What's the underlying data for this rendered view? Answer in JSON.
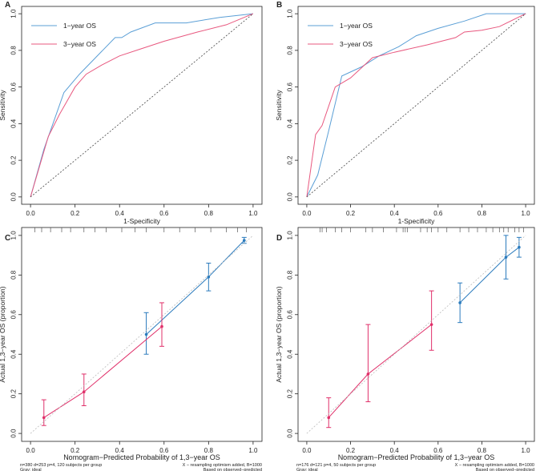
{
  "chart_data": [
    {
      "panel": "A",
      "type": "line",
      "title": "",
      "xlabel": "1-Specificity",
      "ylabel": "Sensitivity",
      "xlim": [
        0,
        1
      ],
      "ylim": [
        0,
        1
      ],
      "xticks": [
        "0.0",
        "0.2",
        "0.4",
        "0.6",
        "0.8",
        "1.0"
      ],
      "yticks": [
        "0.0",
        "0.2",
        "0.4",
        "0.6",
        "0.8",
        "1.0"
      ],
      "legend": "top-left",
      "grid": false,
      "series": [
        {
          "name": "1−year OS",
          "color": "#5b9fd6",
          "x": [
            0,
            0.06,
            0.15,
            0.22,
            0.38,
            0.41,
            0.45,
            0.56,
            0.7,
            0.85,
            1.0
          ],
          "y": [
            0,
            0.26,
            0.57,
            0.67,
            0.87,
            0.87,
            0.9,
            0.95,
            0.95,
            0.98,
            1.0
          ]
        },
        {
          "name": "3−year OS",
          "color": "#e8587f",
          "x": [
            0,
            0.08,
            0.13,
            0.2,
            0.25,
            0.32,
            0.4,
            0.5,
            0.6,
            0.75,
            0.88,
            1.0
          ],
          "y": [
            0,
            0.33,
            0.45,
            0.6,
            0.67,
            0.72,
            0.77,
            0.81,
            0.85,
            0.9,
            0.94,
            1.0
          ]
        },
        {
          "name": "reference",
          "color": "#444444",
          "dashed": true,
          "x": [
            0,
            1
          ],
          "y": [
            0,
            1
          ]
        }
      ]
    },
    {
      "panel": "B",
      "type": "line",
      "title": "",
      "xlabel": "1-Specificity",
      "ylabel": "Sensitivity",
      "xlim": [
        0,
        1
      ],
      "ylim": [
        0,
        1
      ],
      "xticks": [
        "0.0",
        "0.2",
        "0.4",
        "0.6",
        "0.8",
        "1.0"
      ],
      "yticks": [
        "0.0",
        "0.2",
        "0.4",
        "0.6",
        "0.8",
        "1.0"
      ],
      "legend": "top-left",
      "grid": false,
      "series": [
        {
          "name": "1−year OS",
          "color": "#5b9fd6",
          "x": [
            0,
            0.05,
            0.1,
            0.16,
            0.25,
            0.33,
            0.42,
            0.5,
            0.6,
            0.72,
            0.82,
            1.0
          ],
          "y": [
            0,
            0.12,
            0.36,
            0.66,
            0.71,
            0.77,
            0.82,
            0.88,
            0.92,
            0.96,
            1.0,
            1.0
          ]
        },
        {
          "name": "3−year OS",
          "color": "#e8587f",
          "x": [
            0,
            0.04,
            0.07,
            0.13,
            0.2,
            0.3,
            0.4,
            0.55,
            0.68,
            0.72,
            0.8,
            0.88,
            1.0
          ],
          "y": [
            0,
            0.34,
            0.39,
            0.6,
            0.65,
            0.76,
            0.79,
            0.83,
            0.87,
            0.9,
            0.91,
            0.93,
            1.0
          ]
        },
        {
          "name": "reference",
          "color": "#444444",
          "dashed": true,
          "x": [
            0,
            1
          ],
          "y": [
            0,
            1
          ]
        }
      ]
    },
    {
      "panel": "C",
      "type": "line",
      "title": "",
      "xlabel": "Nomogram−Predicted Probability of 1,3−year OS",
      "ylabel": "Actual 1,3−year OS (proportion)",
      "xlim": [
        0,
        1
      ],
      "ylim": [
        0,
        1
      ],
      "xticks": [
        "0.0",
        "0.2",
        "0.4",
        "0.6",
        "0.8",
        "1.0"
      ],
      "yticks": [
        "0.0",
        "0.2",
        "0.4",
        "0.6",
        "0.8",
        "1.0"
      ],
      "footnote_left": "n=380 d=253 p=4, 120 subjects per group",
      "footnote_left2": "Gray: ideal",
      "footnote_right": "X − resampling optimism added, B=1000",
      "footnote_right2": "Based on observed−predicted",
      "rug_x": [
        0.02,
        0.05,
        0.09,
        0.14,
        0.18,
        0.24,
        0.29,
        0.34,
        0.41,
        0.47,
        0.52,
        0.6,
        0.67,
        0.74,
        0.81,
        0.88,
        0.93,
        0.97
      ],
      "series": [
        {
          "name": "1−year OS",
          "color": "#2b7bbd",
          "x": [
            0.52,
            0.8,
            0.96
          ],
          "y": [
            0.5,
            0.79,
            0.975
          ],
          "lower": [
            0.4,
            0.72,
            0.96
          ],
          "upper": [
            0.61,
            0.86,
            0.99
          ]
        },
        {
          "name": "3−year OS",
          "color": "#e0306a",
          "x": [
            0.06,
            0.24,
            0.59
          ],
          "y": [
            0.08,
            0.21,
            0.54
          ],
          "lower": [
            0.04,
            0.14,
            0.44
          ],
          "upper": [
            0.17,
            0.3,
            0.66
          ]
        },
        {
          "name": "ideal",
          "color": "#bbbbbb",
          "dashed": true,
          "x": [
            0,
            1
          ],
          "y": [
            0,
            1
          ]
        }
      ]
    },
    {
      "panel": "D",
      "type": "line",
      "title": "",
      "xlabel": "Nomogram−Predicted Probability of 1,3−year OS",
      "ylabel": "Actual 1,3−year OS (proportion)",
      "xlim": [
        0,
        1
      ],
      "ylim": [
        0,
        1
      ],
      "xticks": [
        "0.0",
        "0.2",
        "0.4",
        "0.6",
        "0.8",
        "1.0"
      ],
      "yticks": [
        "0.0",
        "0.2",
        "0.4",
        "0.6",
        "0.8",
        "1.0"
      ],
      "footnote_left": "n=176 d=121 p=4, 50 subjects per group",
      "footnote_left2": "Gray: ideal",
      "footnote_right": "X − resampling optimism added, B=1000",
      "footnote_right2": "Based on observed−predicted",
      "rug_x": [
        0.06,
        0.07,
        0.09,
        0.13,
        0.16,
        0.2,
        0.27,
        0.3,
        0.35,
        0.41,
        0.44,
        0.45,
        0.46,
        0.52,
        0.55,
        0.57,
        0.6,
        0.64,
        0.7,
        0.74,
        0.78,
        0.82,
        0.85,
        0.88,
        0.9,
        0.92,
        0.95,
        0.97,
        0.99
      ],
      "series": [
        {
          "name": "1−year OS",
          "color": "#2b7bbd",
          "x": [
            0.7,
            0.91,
            0.97
          ],
          "y": [
            0.66,
            0.89,
            0.94
          ],
          "lower": [
            0.56,
            0.78,
            0.89
          ],
          "upper": [
            0.76,
            1.0,
            0.99
          ]
        },
        {
          "name": "3−year OS",
          "color": "#e0306a",
          "x": [
            0.1,
            0.28,
            0.57
          ],
          "y": [
            0.08,
            0.3,
            0.55
          ],
          "lower": [
            0.03,
            0.16,
            0.42
          ],
          "upper": [
            0.18,
            0.55,
            0.72
          ]
        },
        {
          "name": "ideal",
          "color": "#bbbbbb",
          "dashed": true,
          "x": [
            0,
            1
          ],
          "y": [
            0,
            1
          ]
        }
      ]
    }
  ]
}
